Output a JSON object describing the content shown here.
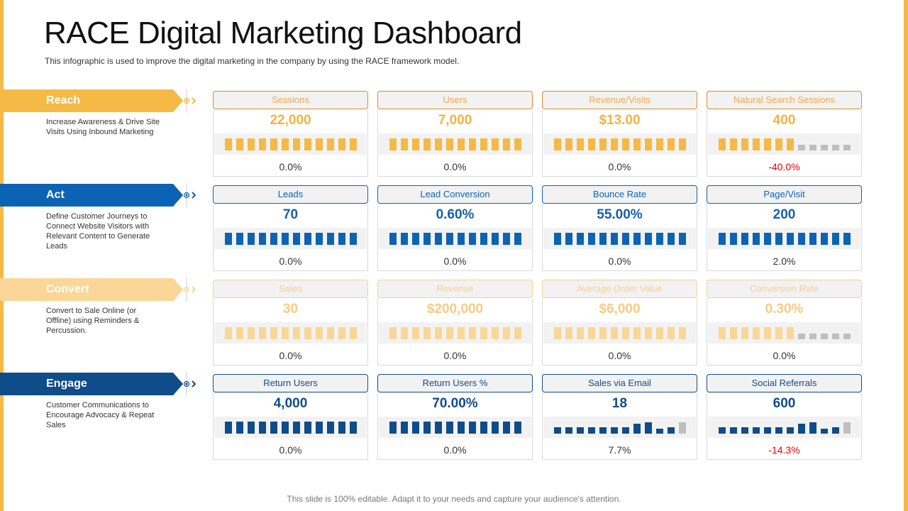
{
  "header": {
    "title": "RACE Digital Marketing Dashboard",
    "subtitle": "This infographic is used to improve  the digital marketing in the company by using the RACE framework  model."
  },
  "footer": {
    "note": "This slide is 100% editable. Adapt it to your needs and capture your audience's attention."
  },
  "colors": {
    "reach": "#F5B946",
    "act": "#0D63B3",
    "convert": "#FAD697",
    "engage": "#0F4C8A",
    "inactive_bar": "#BFBFBF",
    "negative": "#E00000"
  },
  "sections": [
    {
      "label": "Reach",
      "description": "Increase Awareness & Drive Site Visits Using Inbound Marketing",
      "connector_icon": "chevron-right-icon",
      "metrics": [
        {
          "title": "Sessions",
          "value": "22,000",
          "change": "0.0%",
          "spark_type": "bars",
          "active_bars": 12
        },
        {
          "title": "Users",
          "value": "7,000",
          "change": "0.0%",
          "spark_type": "bars",
          "active_bars": 12
        },
        {
          "title": "Revenue/Visits",
          "value": "$13.00",
          "change": "0.0%",
          "spark_type": "bars",
          "active_bars": 12
        },
        {
          "title": "Natural Search Sessions",
          "value": "400",
          "change": "-40.0%",
          "spark_type": "bars",
          "active_bars": 7
        }
      ]
    },
    {
      "label": "Act",
      "description": "Define Customer Journeys to Connect Website Visitors with Relevant Content to Generate Leads",
      "connector_icon": "chevron-right-icon",
      "metrics": [
        {
          "title": "Leads",
          "value": "70",
          "change": "0.0%",
          "spark_type": "bars",
          "active_bars": 12
        },
        {
          "title": "Lead Conversion",
          "value": "0.60%",
          "change": "0.0%",
          "spark_type": "bars",
          "active_bars": 12
        },
        {
          "title": "Bounce Rate",
          "value": "55.00%",
          "change": "0.0%",
          "spark_type": "bars",
          "active_bars": 12
        },
        {
          "title": "Page/Visit",
          "value": "200",
          "change": "2.0%",
          "spark_type": "bars",
          "active_bars": 12
        }
      ]
    },
    {
      "label": "Convert",
      "description": "Convert to Sale Online (or Offline) using Reminders & Percussion.",
      "connector_icon": "chevron-right-icon",
      "metrics": [
        {
          "title": "Sales",
          "value": "30",
          "change": "0.0%",
          "spark_type": "bars",
          "active_bars": 12
        },
        {
          "title": "Revenue",
          "value": "$200,000",
          "change": "0.0%",
          "spark_type": "bars",
          "active_bars": 12
        },
        {
          "title": "Average  Order  Value",
          "value": "$6,000",
          "change": "0.0%",
          "spark_type": "bars",
          "active_bars": 12
        },
        {
          "title": "Conversion  Rate",
          "value": "0.30%",
          "change": "0.0%",
          "spark_type": "bars",
          "active_bars": 7
        }
      ]
    },
    {
      "label": "Engage",
      "description": "Customer Communications to Encourage Advocacy & Repeat Sales",
      "connector_icon": "chevron-right-icon",
      "metrics": [
        {
          "title": "Return Users",
          "value": "4,000",
          "change": "0.0%",
          "spark_type": "bars",
          "active_bars": 12
        },
        {
          "title": "Return Users %",
          "value": "70.00%",
          "change": "0.0%",
          "spark_type": "bars",
          "active_bars": 12
        },
        {
          "title": "Sales via Email",
          "value": "18",
          "change": "7.7%",
          "spark_type": "history",
          "history": [
            0.5,
            0.5,
            0.5,
            0.5,
            0.5,
            0.5,
            0.5,
            0.75,
            0.9,
            0.4,
            0.5,
            0.9
          ]
        },
        {
          "title": "Social Referrals",
          "value": "600",
          "change": "-14.3%",
          "spark_type": "history",
          "history": [
            0.5,
            0.5,
            0.5,
            0.5,
            0.5,
            0.5,
            0.5,
            0.75,
            0.9,
            0.4,
            0.5,
            0.9
          ]
        }
      ]
    }
  ]
}
